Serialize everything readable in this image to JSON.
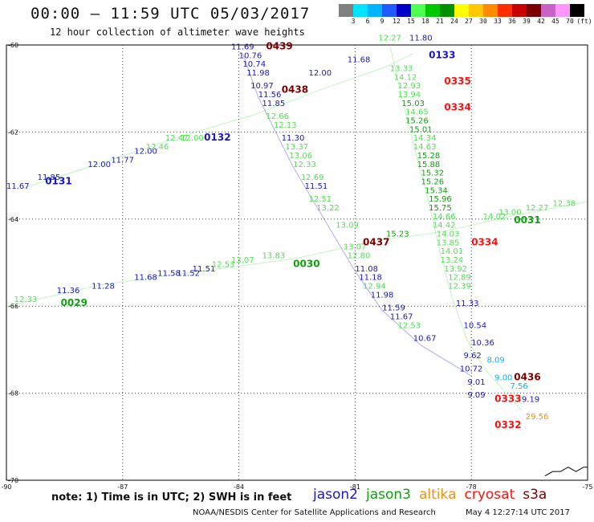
{
  "header": {
    "title": "00:00 – 11:59 UTC 05/03/2017",
    "subtitle": "12 hour collection of altimeter wave heights"
  },
  "colorbar": {
    "unit": "(ft)",
    "ticks": [
      "3",
      "6",
      "9",
      "12",
      "15",
      "18",
      "21",
      "24",
      "27",
      "30",
      "33",
      "36",
      "39",
      "42",
      "45",
      "70"
    ],
    "colors": [
      "#808080",
      "#00e5ff",
      "#00b4ff",
      "#1e5cff",
      "#0000c8",
      "#50ff50",
      "#00c800",
      "#009000",
      "#ffff00",
      "#ffc800",
      "#ff8c00",
      "#ff2d00",
      "#c80000",
      "#7d0000",
      "#c864c8",
      "#ff96ff",
      "#000000"
    ]
  },
  "footer": {
    "note": "note: 1) Time is in UTC; 2) SWH is in feet",
    "credit": "NOAA/NESDIS Center for Satellite Applications and Research",
    "timestamp": "May  4 12:27:14 UTC 2017"
  },
  "chart_data": {
    "type": "scatter",
    "xlim": [
      -90,
      -75
    ],
    "ylim": [
      -70,
      -60
    ],
    "x_ticks": [
      -90,
      -87,
      -84,
      -81,
      -78,
      -75
    ],
    "y_ticks": [
      -60,
      -62,
      -64,
      -66,
      -68,
      -70
    ],
    "x_tick_labels": [
      "-90",
      "-87",
      "-84",
      "-81",
      "-78",
      "-75"
    ],
    "y_tick_labels": [
      "-60",
      "-62",
      "-64",
      "-66",
      "-68",
      "-70"
    ],
    "grid": true,
    "series": [
      {
        "name": "jason2",
        "color": "#1818c8"
      },
      {
        "name": "jason3",
        "color": "#10a010"
      },
      {
        "name": "altika",
        "color": "#f09010"
      },
      {
        "name": "cryosat",
        "color": "#ff1010"
      },
      {
        "name": "s3a",
        "color": "#7d0000"
      }
    ],
    "pass_labels": [
      {
        "label": "0439",
        "x": -83.3,
        "y": -60.1,
        "color": "#7d0000"
      },
      {
        "label": "0438",
        "x": -82.9,
        "y": -61.1,
        "color": "#7d0000"
      },
      {
        "label": "0133",
        "x": -79.1,
        "y": -60.3,
        "color": "#1818c8"
      },
      {
        "label": "0335",
        "x": -78.7,
        "y": -60.9,
        "color": "#ff1010"
      },
      {
        "label": "0334",
        "x": -78.7,
        "y": -61.5,
        "color": "#ff1010"
      },
      {
        "label": "0132",
        "x": -84.9,
        "y": -62.2,
        "color": "#1818c8"
      },
      {
        "label": "0131",
        "x": -89.0,
        "y": -63.2,
        "color": "#1818c8"
      },
      {
        "label": "0031",
        "x": -76.9,
        "y": -64.1,
        "color": "#10a010"
      },
      {
        "label": "0437",
        "x": -80.8,
        "y": -64.6,
        "color": "#7d0000"
      },
      {
        "label": "0334",
        "x": -78.0,
        "y": -64.6,
        "color": "#ff1010"
      },
      {
        "label": "0030",
        "x": -82.6,
        "y": -65.1,
        "color": "#10a010"
      },
      {
        "label": "0029",
        "x": -88.6,
        "y": -66.0,
        "color": "#10a010"
      },
      {
        "label": "0436",
        "x": -76.9,
        "y": -67.7,
        "color": "#7d0000"
      },
      {
        "label": "0333",
        "x": -77.4,
        "y": -68.2,
        "color": "#ff1010"
      },
      {
        "label": "0332",
        "x": -77.4,
        "y": -68.8,
        "color": "#ff1010"
      }
    ],
    "swh_labels": [
      {
        "label": "11.69",
        "x": -84.2,
        "y": -60.1,
        "color": "#1818c8"
      },
      {
        "label": "10.76",
        "x": -84.0,
        "y": -60.3,
        "color": "#1818c8"
      },
      {
        "label": "10.74",
        "x": -83.9,
        "y": -60.5,
        "color": "#1818c8"
      },
      {
        "label": "11.98",
        "x": -83.8,
        "y": -60.7,
        "color": "#1818c8"
      },
      {
        "label": "10.97",
        "x": -83.7,
        "y": -61.0,
        "color": "#1818c8"
      },
      {
        "label": "11.56",
        "x": -83.5,
        "y": -61.2,
        "color": "#1818c8"
      },
      {
        "label": "11.85",
        "x": -83.4,
        "y": -61.4,
        "color": "#1818c8"
      },
      {
        "label": "12.66",
        "x": -83.3,
        "y": -61.7,
        "color": "#50e050"
      },
      {
        "label": "12.13",
        "x": -83.1,
        "y": -61.9,
        "color": "#50e050"
      },
      {
        "label": "11.30",
        "x": -82.9,
        "y": -62.2,
        "color": "#1818c8"
      },
      {
        "label": "13.37",
        "x": -82.8,
        "y": -62.4,
        "color": "#50e050"
      },
      {
        "label": "13.06",
        "x": -82.7,
        "y": -62.6,
        "color": "#50e050"
      },
      {
        "label": "12.33",
        "x": -82.6,
        "y": -62.8,
        "color": "#50e050"
      },
      {
        "label": "12.69",
        "x": -82.4,
        "y": -63.1,
        "color": "#50e050"
      },
      {
        "label": "11.51",
        "x": -82.3,
        "y": -63.3,
        "color": "#1818c8"
      },
      {
        "label": "12.51",
        "x": -82.2,
        "y": -63.6,
        "color": "#50e050"
      },
      {
        "label": "13.22",
        "x": -82.0,
        "y": -63.8,
        "color": "#50e050"
      },
      {
        "label": "13.09",
        "x": -81.5,
        "y": -64.2,
        "color": "#50e050"
      },
      {
        "label": "13.07",
        "x": -81.3,
        "y": -64.7,
        "color": "#50e050"
      },
      {
        "label": "12.80",
        "x": -81.2,
        "y": -64.9,
        "color": "#50e050"
      },
      {
        "label": "11.08",
        "x": -81.0,
        "y": -65.2,
        "color": "#1818c8"
      },
      {
        "label": "11.18",
        "x": -80.9,
        "y": -65.4,
        "color": "#1818c8"
      },
      {
        "label": "12.94",
        "x": -80.8,
        "y": -65.6,
        "color": "#50e050"
      },
      {
        "label": "11.98",
        "x": -80.6,
        "y": -65.8,
        "color": "#1818c8"
      },
      {
        "label": "11.59",
        "x": -80.3,
        "y": -66.1,
        "color": "#1818c8"
      },
      {
        "label": "11.67",
        "x": -80.1,
        "y": -66.3,
        "color": "#1818c8"
      },
      {
        "label": "12.53",
        "x": -79.9,
        "y": -66.5,
        "color": "#50e050"
      },
      {
        "label": "10.67",
        "x": -79.5,
        "y": -66.8,
        "color": "#1818c8"
      },
      {
        "label": "12.27",
        "x": -80.4,
        "y": -59.9,
        "color": "#50e050"
      },
      {
        "label": "11.80",
        "x": -79.6,
        "y": -59.9,
        "color": "#1818c8"
      },
      {
        "label": "11.68",
        "x": -81.2,
        "y": -60.4,
        "color": "#1818c8"
      },
      {
        "label": "13.33",
        "x": -80.1,
        "y": -60.6,
        "color": "#50e050"
      },
      {
        "label": "14.12",
        "x": -80.0,
        "y": -60.8,
        "color": "#50e050"
      },
      {
        "label": "12.93",
        "x": -79.9,
        "y": -61.0,
        "color": "#50e050"
      },
      {
        "label": "13.94",
        "x": -79.9,
        "y": -61.2,
        "color": "#50e050"
      },
      {
        "label": "15.03",
        "x": -79.8,
        "y": -61.4,
        "color": "#10a010"
      },
      {
        "label": "14.65",
        "x": -79.7,
        "y": -61.6,
        "color": "#50e050"
      },
      {
        "label": "15.26",
        "x": -79.7,
        "y": -61.8,
        "color": "#10a010"
      },
      {
        "label": "15.01",
        "x": -79.6,
        "y": -62.0,
        "color": "#10a010"
      },
      {
        "label": "14.34",
        "x": -79.5,
        "y": -62.2,
        "color": "#50e050"
      },
      {
        "label": "14.63",
        "x": -79.5,
        "y": -62.4,
        "color": "#50e050"
      },
      {
        "label": "15.28",
        "x": -79.4,
        "y": -62.6,
        "color": "#10a010"
      },
      {
        "label": "15.88",
        "x": -79.4,
        "y": -62.8,
        "color": "#10a010"
      },
      {
        "label": "15.32",
        "x": -79.3,
        "y": -63.0,
        "color": "#10a010"
      },
      {
        "label": "15.26",
        "x": -79.3,
        "y": -63.2,
        "color": "#10a010"
      },
      {
        "label": "15.34",
        "x": -79.2,
        "y": -63.4,
        "color": "#10a010"
      },
      {
        "label": "15.96",
        "x": -79.1,
        "y": -63.6,
        "color": "#10a010"
      },
      {
        "label": "15.75",
        "x": -79.1,
        "y": -63.8,
        "color": "#10a010"
      },
      {
        "label": "14.66",
        "x": -79.0,
        "y": -64.0,
        "color": "#50e050"
      },
      {
        "label": "14.42",
        "x": -79.0,
        "y": -64.2,
        "color": "#50e050"
      },
      {
        "label": "14.03",
        "x": -78.9,
        "y": -64.4,
        "color": "#50e050"
      },
      {
        "label": "13.85",
        "x": -78.9,
        "y": -64.6,
        "color": "#50e050"
      },
      {
        "label": "14.01",
        "x": -78.8,
        "y": -64.8,
        "color": "#50e050"
      },
      {
        "label": "13.24",
        "x": -78.8,
        "y": -65.0,
        "color": "#50e050"
      },
      {
        "label": "13.92",
        "x": -78.7,
        "y": -65.2,
        "color": "#50e050"
      },
      {
        "label": "12.89",
        "x": -78.6,
        "y": -65.4,
        "color": "#50e050"
      },
      {
        "label": "12.39",
        "x": -78.6,
        "y": -65.6,
        "color": "#50e050"
      },
      {
        "label": "11.33",
        "x": -78.4,
        "y": -66.0,
        "color": "#1818c8"
      },
      {
        "label": "10.54",
        "x": -78.2,
        "y": -66.5,
        "color": "#1818c8"
      },
      {
        "label": "10.36",
        "x": -78.0,
        "y": -66.9,
        "color": "#1818c8"
      },
      {
        "label": "9.62",
        "x": -78.2,
        "y": -67.2,
        "color": "#1818c8"
      },
      {
        "label": "8.09",
        "x": -77.6,
        "y": -67.3,
        "color": "#00b4ff"
      },
      {
        "label": "10.72",
        "x": -78.3,
        "y": -67.5,
        "color": "#1818c8"
      },
      {
        "label": "9.00",
        "x": -77.4,
        "y": -67.7,
        "color": "#00b4ff"
      },
      {
        "label": "9.01",
        "x": -78.1,
        "y": -67.8,
        "color": "#1818c8"
      },
      {
        "label": "7.56",
        "x": -77.0,
        "y": -67.9,
        "color": "#00b4ff"
      },
      {
        "label": "9.09",
        "x": -78.1,
        "y": -68.1,
        "color": "#1818c8"
      },
      {
        "label": "9.19",
        "x": -76.7,
        "y": -68.2,
        "color": "#1818c8"
      },
      {
        "label": "29.56",
        "x": -76.6,
        "y": -68.6,
        "color": "#f09010"
      },
      {
        "label": "12.00",
        "x": -82.2,
        "y": -60.7,
        "color": "#1818c8"
      },
      {
        "label": "12.00",
        "x": -86.7,
        "y": -62.5,
        "color": "#1818c8"
      },
      {
        "label": "12.00",
        "x": -87.9,
        "y": -62.8,
        "color": "#1818c8"
      },
      {
        "label": "11.77",
        "x": -87.3,
        "y": -62.7,
        "color": "#1818c8"
      },
      {
        "label": "11.85",
        "x": -89.2,
        "y": -63.1,
        "color": "#1818c8"
      },
      {
        "label": "11.67",
        "x": -90.0,
        "y": -63.3,
        "color": "#1818c8"
      },
      {
        "label": "12.47",
        "x": -85.9,
        "y": -62.2,
        "color": "#50e050"
      },
      {
        "label": "12.46",
        "x": -86.4,
        "y": -62.4,
        "color": "#50e050"
      },
      {
        "label": "12.00",
        "x": -85.5,
        "y": -62.2,
        "color": "#50e050"
      },
      {
        "label": "13.00",
        "x": -77.3,
        "y": -63.9,
        "color": "#50e050"
      },
      {
        "label": "12.27",
        "x": -76.6,
        "y": -63.8,
        "color": "#50e050"
      },
      {
        "label": "12.38",
        "x": -75.9,
        "y": -63.7,
        "color": "#50e050"
      },
      {
        "label": "14.02",
        "x": -77.7,
        "y": -64.0,
        "color": "#50e050"
      },
      {
        "label": "15.23",
        "x": -80.2,
        "y": -64.4,
        "color": "#10a010"
      },
      {
        "label": "11.68",
        "x": -86.7,
        "y": -65.4,
        "color": "#1818c8"
      },
      {
        "label": "11.58",
        "x": -86.1,
        "y": -65.3,
        "color": "#1818c8"
      },
      {
        "label": "11.52",
        "x": -85.6,
        "y": -65.3,
        "color": "#1818c8"
      },
      {
        "label": "11.51",
        "x": -85.2,
        "y": -65.2,
        "color": "#1818c8"
      },
      {
        "label": "12.53",
        "x": -84.7,
        "y": -65.1,
        "color": "#50e050"
      },
      {
        "label": "13.07",
        "x": -84.2,
        "y": -65.0,
        "color": "#50e050"
      },
      {
        "label": "13.83",
        "x": -83.4,
        "y": -64.9,
        "color": "#50e050"
      },
      {
        "label": "11.28",
        "x": -87.8,
        "y": -65.6,
        "color": "#1818c8"
      },
      {
        "label": "12.33",
        "x": -89.8,
        "y": -65.9,
        "color": "#50e050"
      },
      {
        "label": "11.36",
        "x": -88.7,
        "y": -65.7,
        "color": "#1818c8"
      }
    ],
    "tracks": [
      {
        "name": "0439/0438/0437 descending",
        "color": "#1818c8",
        "points": [
          [
            -83.9,
            -60.2
          ],
          [
            -83.5,
            -61.2
          ],
          [
            -82.6,
            -62.8
          ],
          [
            -81.8,
            -64.0
          ],
          [
            -81.0,
            -65.2
          ],
          [
            -80.3,
            -66.1
          ],
          [
            -79.3,
            -66.9
          ],
          [
            -78.0,
            -67.6
          ]
        ]
      },
      {
        "name": "0133/0334 descending",
        "color": "#50e050",
        "points": [
          [
            -80.1,
            -60.0
          ],
          [
            -79.8,
            -61.2
          ],
          [
            -79.4,
            -62.6
          ],
          [
            -79.1,
            -63.6
          ],
          [
            -78.8,
            -64.8
          ],
          [
            -78.5,
            -65.8
          ],
          [
            -78.1,
            -66.8
          ],
          [
            -77.6,
            -67.5
          ],
          [
            -77.1,
            -68.0
          ],
          [
            -76.7,
            -68.4
          ]
        ]
      },
      {
        "name": "0131/0132 ascending",
        "color": "#50e050",
        "points": [
          [
            -89.6,
            -63.3
          ],
          [
            -87.5,
            -62.7
          ],
          [
            -85.5,
            -62.1
          ],
          [
            -83.6,
            -61.6
          ],
          [
            -81.8,
            -61.0
          ],
          [
            -80.2,
            -60.5
          ],
          [
            -79.5,
            -60.2
          ]
        ]
      },
      {
        "name": "0029/0030/0031 ascending",
        "color": "#50e050",
        "points": [
          [
            -90.0,
            -66.0
          ],
          [
            -87.5,
            -65.5
          ],
          [
            -85.0,
            -65.2
          ],
          [
            -82.5,
            -64.9
          ],
          [
            -80.5,
            -64.5
          ],
          [
            -78.8,
            -64.3
          ],
          [
            -76.8,
            -63.9
          ],
          [
            -75.0,
            -63.6
          ]
        ]
      }
    ],
    "coast": [
      [
        -76.1,
        -69.9
      ],
      [
        -75.9,
        -69.8
      ],
      [
        -75.7,
        -69.8
      ],
      [
        -75.5,
        -69.7
      ],
      [
        -75.3,
        -69.8
      ],
      [
        -75.1,
        -69.7
      ],
      [
        -75.0,
        -69.7
      ]
    ]
  }
}
